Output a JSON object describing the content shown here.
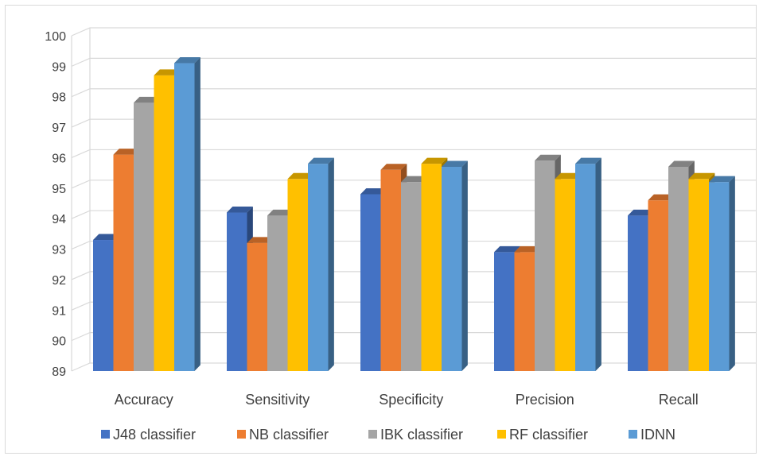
{
  "chart_data": {
    "type": "bar",
    "title": "",
    "xlabel": "",
    "ylabel": "",
    "categories": [
      "Accuracy",
      "Sensitivity",
      "Specificity",
      "Precision",
      "Recall"
    ],
    "ylim": [
      89,
      100
    ],
    "yticks": [
      89,
      90,
      91,
      92,
      93,
      94,
      95,
      96,
      97,
      98,
      99,
      100
    ],
    "grid": true,
    "legend_position": "bottom",
    "style": "3d-clustered-column",
    "series": [
      {
        "name": "J48 classifier",
        "color": "#4472c4",
        "values": [
          93.3,
          94.2,
          94.8,
          92.9,
          94.1
        ]
      },
      {
        "name": "NB classifier",
        "color": "#ed7d31",
        "values": [
          96.1,
          93.2,
          95.6,
          92.9,
          94.6
        ]
      },
      {
        "name": "IBK classifier",
        "color": "#a5a5a5",
        "values": [
          97.8,
          94.1,
          95.2,
          95.9,
          95.7
        ]
      },
      {
        "name": "RF classifier",
        "color": "#ffc000",
        "values": [
          98.7,
          95.3,
          95.8,
          95.3,
          95.3
        ]
      },
      {
        "name": "IDNN",
        "color": "#5b9bd5",
        "values": [
          99.1,
          95.8,
          95.7,
          95.8,
          95.2
        ]
      }
    ]
  }
}
